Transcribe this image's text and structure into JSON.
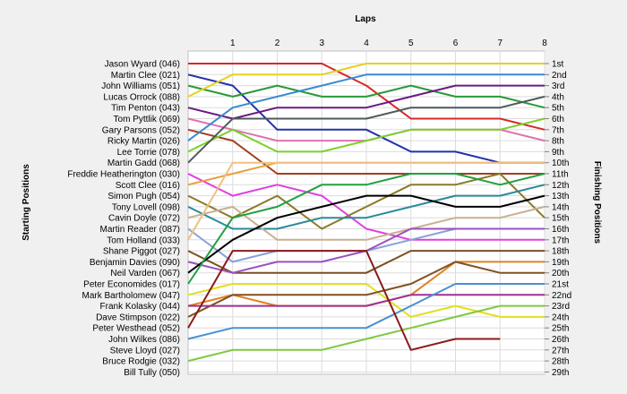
{
  "chart_data": {
    "type": "line",
    "xlabel": "Laps",
    "ylabel_left": "Starting Positions",
    "ylabel_right": "Finishing Positions",
    "x": [
      0,
      1,
      2,
      3,
      4,
      5,
      6,
      7,
      8
    ],
    "x_tick_labels": [
      "1",
      "2",
      "3",
      "4",
      "5",
      "6",
      "7",
      "8"
    ],
    "ylim": [
      1,
      29
    ],
    "y_inverted": true,
    "grid": true,
    "starting_labels": [
      "Jason Wyard (046)",
      "Martin Clee (021)",
      "John Williams (051)",
      "Lucas Orrock (088)",
      "Tim Penton (043)",
      "Tom Pyttlik (069)",
      "Gary Parsons (052)",
      "Ricky Martin (026)",
      "Lee Torrie (078)",
      "Martin Gadd (068)",
      "Freddie Heatherington (030)",
      "Scott Clee (016)",
      "Simon Pugh (054)",
      "Tony Lovell (098)",
      "Cavin Doyle (072)",
      "Martin Reader (087)",
      "Tom Holland (033)",
      "Shane Piggot (027)",
      "Benjamin Davies (090)",
      "Neil Varden (067)",
      "Peter Economides (017)",
      "Mark Bartholomew (047)",
      "Frank Kolasky (044)",
      "Dave Stimpson (022)",
      "Peter Westhead (052)",
      "John Wilkes (086)",
      "Steve Lloyd (027)",
      "Bruce Rodgie (032)",
      "Bill Tully (050)"
    ],
    "finishing_labels": [
      "1st",
      "2nd",
      "3rd",
      "4th",
      "5th",
      "6th",
      "7th",
      "8th",
      "9th",
      "10th",
      "11th",
      "12th",
      "13th",
      "14th",
      "15th",
      "16th",
      "17th",
      "18th",
      "19th",
      "20th",
      "21st",
      "22nd",
      "23rd",
      "24th",
      "25th",
      "26th",
      "27th",
      "28th",
      "29th"
    ],
    "series": [
      {
        "color": "#d42a2a",
        "values": [
          1,
          1,
          1,
          1,
          3,
          6,
          6,
          6,
          7
        ]
      },
      {
        "color": "#2530a8",
        "values": [
          2,
          3,
          7,
          7,
          7,
          9,
          9,
          10,
          10
        ]
      },
      {
        "color": "#2a9a3a",
        "values": [
          3,
          4,
          3,
          4,
          4,
          3,
          4,
          4,
          5
        ]
      },
      {
        "color": "#e8d020",
        "values": [
          4,
          2,
          2,
          2,
          1,
          1,
          1,
          1,
          1
        ]
      },
      {
        "color": "#6a1a80",
        "values": [
          5,
          6,
          5,
          5,
          5,
          4,
          3,
          3,
          3
        ]
      },
      {
        "color": "#e070b0",
        "values": [
          6,
          7,
          8,
          8,
          8,
          7,
          7,
          7,
          8
        ]
      },
      {
        "color": "#a04020",
        "values": [
          7,
          8,
          11,
          11,
          11,
          11,
          11,
          11,
          11
        ]
      },
      {
        "color": "#3a8ad0",
        "values": [
          8,
          5,
          4,
          3,
          2,
          2,
          2,
          2,
          2
        ]
      },
      {
        "color": "#7ad02a",
        "values": [
          9,
          7,
          9,
          9,
          8,
          7,
          7,
          7,
          6
        ]
      },
      {
        "color": "#505a5a",
        "values": [
          10,
          6,
          6,
          6,
          6,
          5,
          5,
          5,
          4
        ]
      },
      {
        "color": "#e040e0",
        "values": [
          11,
          13,
          12,
          13,
          16,
          17,
          17,
          17,
          17
        ]
      },
      {
        "color": "#e8a040",
        "values": [
          12,
          11,
          10,
          10,
          10,
          10,
          10,
          10,
          10
        ]
      },
      {
        "color": "#8a7a2a",
        "values": [
          13,
          15,
          13,
          16,
          14,
          12,
          12,
          11,
          15
        ]
      },
      {
        "color": "#2a8a9a",
        "values": [
          14,
          16,
          16,
          15,
          15,
          14,
          13,
          13,
          12
        ]
      },
      {
        "color": "#c8b090",
        "values": [
          15,
          14,
          17,
          17,
          17,
          16,
          15,
          15,
          14
        ]
      },
      {
        "color": "#8aa0d8",
        "values": [
          16,
          19,
          18,
          18,
          18,
          17,
          16,
          16,
          16
        ]
      },
      {
        "color": "#f0c080",
        "values": [
          17,
          10,
          10,
          10,
          10,
          10,
          10,
          10,
          10
        ]
      },
      {
        "color": "#7a5020",
        "values": [
          18,
          20,
          20,
          20,
          20,
          18,
          18,
          18,
          18
        ]
      },
      {
        "color": "#9a50c0",
        "values": [
          19,
          20,
          19,
          19,
          18,
          16,
          16,
          16,
          16
        ]
      },
      {
        "color": "#000000",
        "values": [
          20,
          17,
          15,
          14,
          13,
          13,
          14,
          14,
          13
        ]
      },
      {
        "color": "#20a040",
        "values": [
          21,
          15,
          14,
          12,
          12,
          11,
          11,
          12,
          11
        ]
      },
      {
        "color": "#e0e020",
        "values": [
          22,
          21,
          21,
          21,
          21,
          24,
          23,
          24,
          24
        ]
      },
      {
        "color": "#e08020",
        "values": [
          23,
          22,
          23,
          23,
          23,
          22,
          19,
          19,
          19
        ]
      },
      {
        "color": "#805020",
        "values": [
          24,
          22,
          22,
          22,
          22,
          21,
          19,
          20,
          20
        ]
      },
      {
        "color": "#a03090",
        "values": [
          23,
          23,
          23,
          23,
          23,
          22,
          22,
          22,
          22
        ]
      },
      {
        "color": "#4a90d0",
        "values": [
          26,
          25,
          25,
          25,
          25,
          23,
          21,
          21,
          21
        ]
      },
      {
        "color": "#80c840",
        "values": [
          28,
          27,
          27,
          27,
          26,
          25,
          24,
          23,
          23
        ]
      },
      {
        "color": "#8a1a1a",
        "values": [
          25,
          18,
          18,
          18,
          18,
          27,
          26,
          26,
          null
        ]
      }
    ]
  }
}
